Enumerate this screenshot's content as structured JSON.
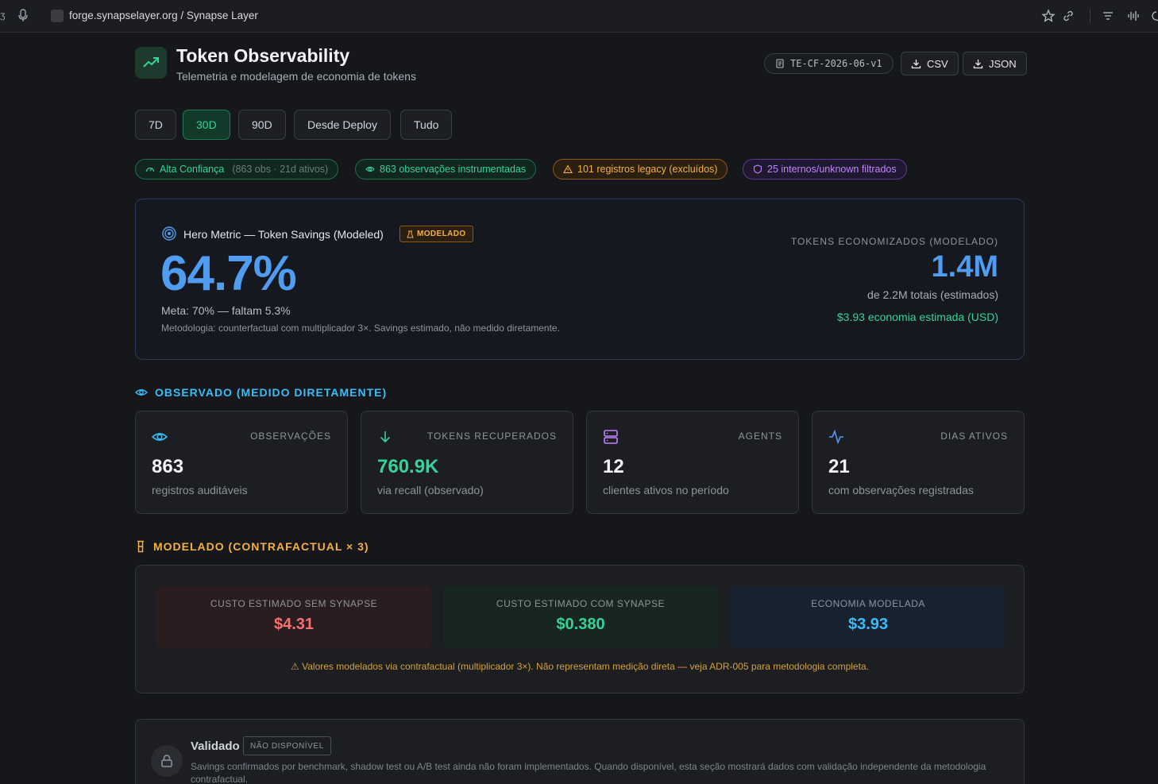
{
  "browser": {
    "url_host": "forge.synapselayer.org",
    "url_sep": " / ",
    "url_page": "Synapse Layer"
  },
  "header": {
    "title": "Token Observability",
    "subtitle": "Telemetria e modelagem de economia de tokens",
    "version": "TE-CF-2026-06-v1",
    "export_csv": "CSV",
    "export_json": "JSON"
  },
  "range_tabs": [
    {
      "label": "7D",
      "active": false
    },
    {
      "label": "30D",
      "active": true
    },
    {
      "label": "90D",
      "active": false
    },
    {
      "label": "Desde Deploy",
      "active": false
    },
    {
      "label": "Tudo",
      "active": false
    }
  ],
  "badges": {
    "confidence": "Alta Confiança",
    "confidence_detail": "(863 obs · 21d ativos)",
    "instrumented": "863 observações instrumentadas",
    "legacy": "101 registros legacy (excluídos)",
    "filtered": "25 internos/unknown filtrados"
  },
  "hero": {
    "label": "Hero Metric — Token Savings (Modeled)",
    "modeled_badge": "MODELADO",
    "value": "64.7%",
    "target": "Meta: 70% — faltam 5.3%",
    "methodology": "Metodologia: counterfactual com multiplicador 3×. Savings estimado, não medido diretamente.",
    "right_label": "TOKENS ECONOMIZADOS (MODELADO)",
    "right_value": "1.4M",
    "right_sub": "de 2.2M totais (estimados)",
    "right_usd": "$3.93 economia estimada (USD)"
  },
  "observed": {
    "heading": "OBSERVADO (MEDIDO DIRETAMENTE)",
    "cards": [
      {
        "label": "OBSERVAÇÕES",
        "value": "863",
        "sub": "registros auditáveis",
        "icon": "eye-icon"
      },
      {
        "label": "TOKENS RECUPERADOS",
        "value": "760.9K",
        "sub": "via recall (observado)",
        "icon": "arrow-down-icon"
      },
      {
        "label": "AGENTS",
        "value": "12",
        "sub": "clientes ativos no período",
        "icon": "server-icon"
      },
      {
        "label": "DIAS ATIVOS",
        "value": "21",
        "sub": "com observações registradas",
        "icon": "activity-icon"
      }
    ]
  },
  "modeled": {
    "heading": "MODELADO (CONTRAFACTUAL × 3)",
    "without_label": "CUSTO ESTIMADO SEM SYNAPSE",
    "without_value": "$4.31",
    "with_label": "CUSTO ESTIMADO COM SYNAPSE",
    "with_value": "$0.380",
    "savings_label": "ECONOMIA MODELADA",
    "savings_value": "$3.93",
    "note": "⚠ Valores modelados via contrafactual (multiplicador 3×). Não representam medição direta — veja ADR-005 para metodologia completa."
  },
  "validated": {
    "title": "Validado",
    "badge": "NÃO DISPONÍVEL",
    "text": "Savings confirmados por benchmark, shadow test ou A/B test ainda não foram implementados. Quando disponível, esta seção mostrará dados com validação independente da metodologia contrafactual."
  },
  "colors": {
    "accent_blue": "#4f9cf0",
    "accent_green": "#34d399",
    "accent_amber": "#f5b041",
    "accent_purple": "#c084fc",
    "accent_red": "#f87171"
  }
}
